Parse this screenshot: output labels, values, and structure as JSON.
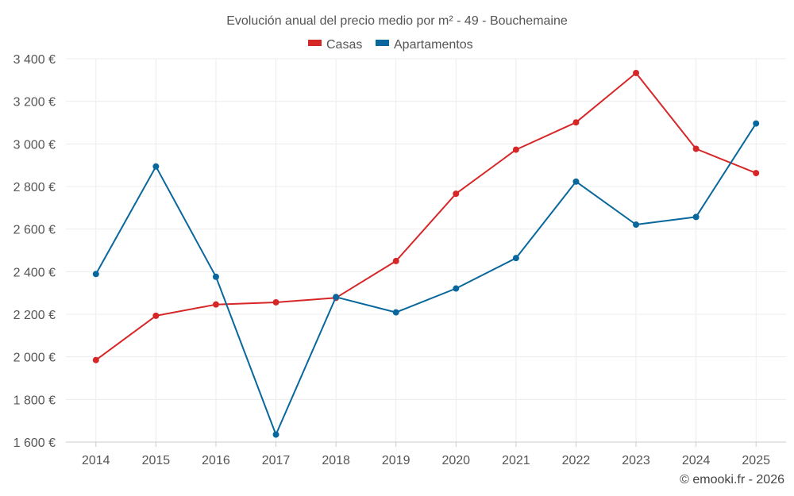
{
  "chart_data": {
    "type": "line",
    "title": "Evolución anual del precio medio por m² - 49 - Bouchemaine",
    "categories": [
      "2014",
      "2015",
      "2016",
      "2017",
      "2018",
      "2019",
      "2020",
      "2021",
      "2022",
      "2023",
      "2024",
      "2025"
    ],
    "series": [
      {
        "name": "Casas",
        "color": "#d62728",
        "values": [
          1985,
          2193,
          2246,
          2256,
          2277,
          2450,
          2766,
          2973,
          3101,
          3333,
          2977,
          2863
        ]
      },
      {
        "name": "Apartamentos",
        "color": "#08679c",
        "values": [
          2389,
          2894,
          2376,
          1635,
          2281,
          2209,
          2321,
          2464,
          2823,
          2621,
          2657,
          3096
        ]
      }
    ],
    "ylim": [
      1600,
      3400
    ],
    "yticks": [
      1600,
      1800,
      2000,
      2200,
      2400,
      2600,
      2800,
      3000,
      3200,
      3400
    ],
    "ytick_labels": [
      "1 600 €",
      "1 800 €",
      "2 000 €",
      "2 200 €",
      "2 400 €",
      "2 600 €",
      "2 800 €",
      "3 000 €",
      "3 200 €",
      "3 400 €"
    ],
    "xlabel": "",
    "ylabel": "",
    "grid": true,
    "legend": "top-center",
    "credit": "© emooki.fr - 2026"
  }
}
